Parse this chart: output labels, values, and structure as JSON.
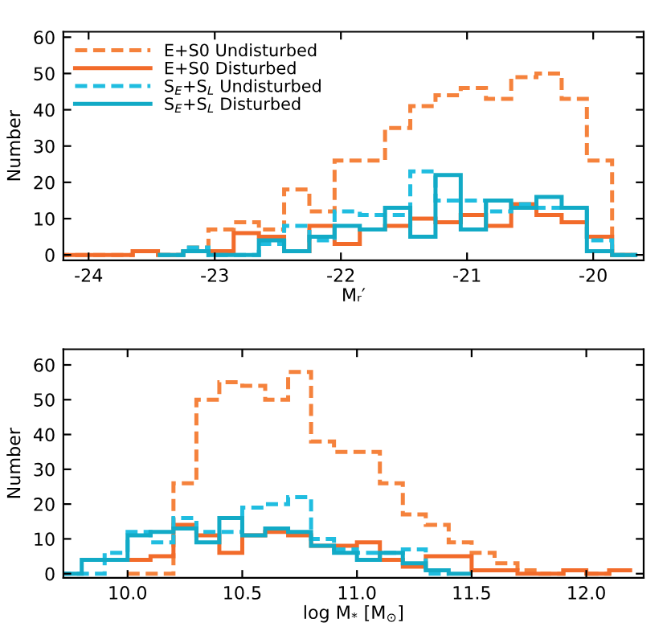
{
  "chart_data": [
    {
      "type": "histogram",
      "xlabel": "Mᵣ′",
      "ylabel": "Number",
      "xlim": [
        -24.2,
        -19.6
      ],
      "ylim": [
        -1.5,
        61.5
      ],
      "xticks": [
        -24,
        -23,
        -22,
        -21,
        -20
      ],
      "yticks": [
        0,
        10,
        20,
        30,
        40,
        50,
        60
      ],
      "legend": "top left",
      "grid": false,
      "bins": [
        -24.25,
        -24.05,
        -23.85,
        -23.65,
        -23.45,
        -23.25,
        -23.05,
        -22.85,
        -22.65,
        -22.45,
        -22.25,
        -22.05,
        -21.85,
        -21.65,
        -21.45,
        -21.25,
        -21.05,
        -20.85,
        -20.65,
        -20.45,
        -20.25,
        -20.05,
        -19.85,
        -19.65
      ],
      "series": [
        {
          "name": "E+S0 Undisturbed",
          "color": "#f5823c",
          "line_style": "dashed",
          "values": [
            0,
            0,
            0,
            1,
            0,
            2,
            7,
            9,
            7,
            18,
            12,
            26,
            26,
            35,
            41,
            44,
            46,
            43,
            49,
            50,
            43,
            26,
            0
          ]
        },
        {
          "name": "E+S0 Disturbed",
          "color": "#f26b2a",
          "line_style": "solid",
          "values": [
            0,
            0,
            0,
            1,
            0,
            1,
            1,
            6,
            5,
            1,
            8,
            3,
            7,
            8,
            10,
            9,
            11,
            8,
            14,
            11,
            9,
            5,
            0
          ]
        },
        {
          "name": "S$_{E}$+S$_{L}$ Undisturbed",
          "color": "#20bde0",
          "line_style": "dashed",
          "bins": [
            -23.45,
            -23.25,
            -23.05,
            -22.85,
            -22.65,
            -22.45,
            -22.25,
            -22.05,
            -21.85,
            -21.65,
            -21.45,
            -21.25,
            -21.05,
            -20.85,
            -20.65,
            -20.45,
            -20.25,
            -20.05,
            -19.85,
            -19.65
          ],
          "values": [
            0,
            2,
            0,
            0,
            3,
            8,
            4,
            12,
            11,
            11,
            23,
            15,
            15,
            12,
            14,
            13,
            13,
            4,
            0
          ]
        },
        {
          "name": "S$_{E}$+S$_{L}$ Disturbed",
          "color": "#12aac6",
          "line_style": "solid",
          "bins": [
            -23.45,
            -23.25,
            -23.05,
            -22.85,
            -22.65,
            -22.45,
            -22.25,
            -22.05,
            -21.85,
            -21.65,
            -21.45,
            -21.25,
            -21.05,
            -20.85,
            -20.65,
            -20.45,
            -20.25,
            -20.05,
            -19.85,
            -19.65
          ],
          "values": [
            0,
            1,
            0,
            0,
            4,
            1,
            5,
            8,
            7,
            13,
            5,
            22,
            7,
            15,
            13,
            16,
            13,
            1,
            0
          ]
        }
      ]
    },
    {
      "type": "histogram",
      "xlabel": "log M$_{*}$ [M$_{⊙}$]",
      "ylabel": "Number",
      "xlim": [
        9.72,
        12.25
      ],
      "ylim": [
        -1.2,
        64.5
      ],
      "xticks": [
        {
          "value": 10,
          "label": "10.0"
        },
        10.5,
        {
          "value": 11,
          "label": "11.0"
        },
        11.5,
        {
          "value": 12,
          "label": "12.0"
        }
      ],
      "yticks": [
        0,
        10,
        20,
        30,
        40,
        50,
        60
      ],
      "grid": false,
      "bins": [
        10.0,
        10.1,
        10.2,
        10.3,
        10.4,
        10.5,
        10.6,
        10.7,
        10.8,
        10.9,
        11.0,
        11.1,
        11.2,
        11.3,
        11.4,
        11.5,
        11.6,
        11.7,
        11.8,
        11.9,
        12.0,
        12.1,
        12.2
      ],
      "series": [
        {
          "color": "#f5823c",
          "line_style": "dashed",
          "values": [
            0,
            0,
            26,
            50,
            55,
            54,
            50,
            58,
            38,
            35,
            35,
            26,
            17,
            14,
            9,
            6,
            3,
            1,
            0,
            1,
            0,
            1
          ]
        },
        {
          "color": "#f26b2a",
          "line_style": "solid",
          "values": [
            4,
            5,
            14,
            11,
            6,
            11,
            12,
            11,
            8,
            8,
            9,
            4,
            2,
            5,
            5,
            1,
            1,
            0,
            0,
            1,
            0,
            1
          ]
        },
        {
          "color": "#20bde0",
          "line_style": "dashed",
          "bins": [
            9.7,
            9.8,
            9.9,
            10.0,
            10.1,
            10.2,
            10.3,
            10.4,
            10.5,
            10.6,
            10.7,
            10.8,
            10.9,
            11.0,
            11.1,
            11.2,
            11.3,
            11.4
          ],
          "values": [
            0,
            0,
            6,
            12,
            9,
            16,
            12,
            12,
            19,
            20,
            22,
            10,
            7,
            6,
            6,
            7,
            0
          ]
        },
        {
          "color": "#12aac6",
          "line_style": "solid",
          "bins": [
            9.7,
            9.8,
            9.9,
            10.0,
            10.1,
            10.2,
            10.3,
            10.4,
            10.5,
            10.6,
            10.7,
            10.8,
            10.9,
            11.0,
            11.1,
            11.2,
            11.3,
            11.4,
            11.5
          ],
          "values": [
            0,
            4,
            4,
            11,
            12,
            13,
            9,
            16,
            11,
            13,
            12,
            8,
            6,
            4,
            6,
            3,
            1,
            0
          ]
        }
      ]
    }
  ]
}
